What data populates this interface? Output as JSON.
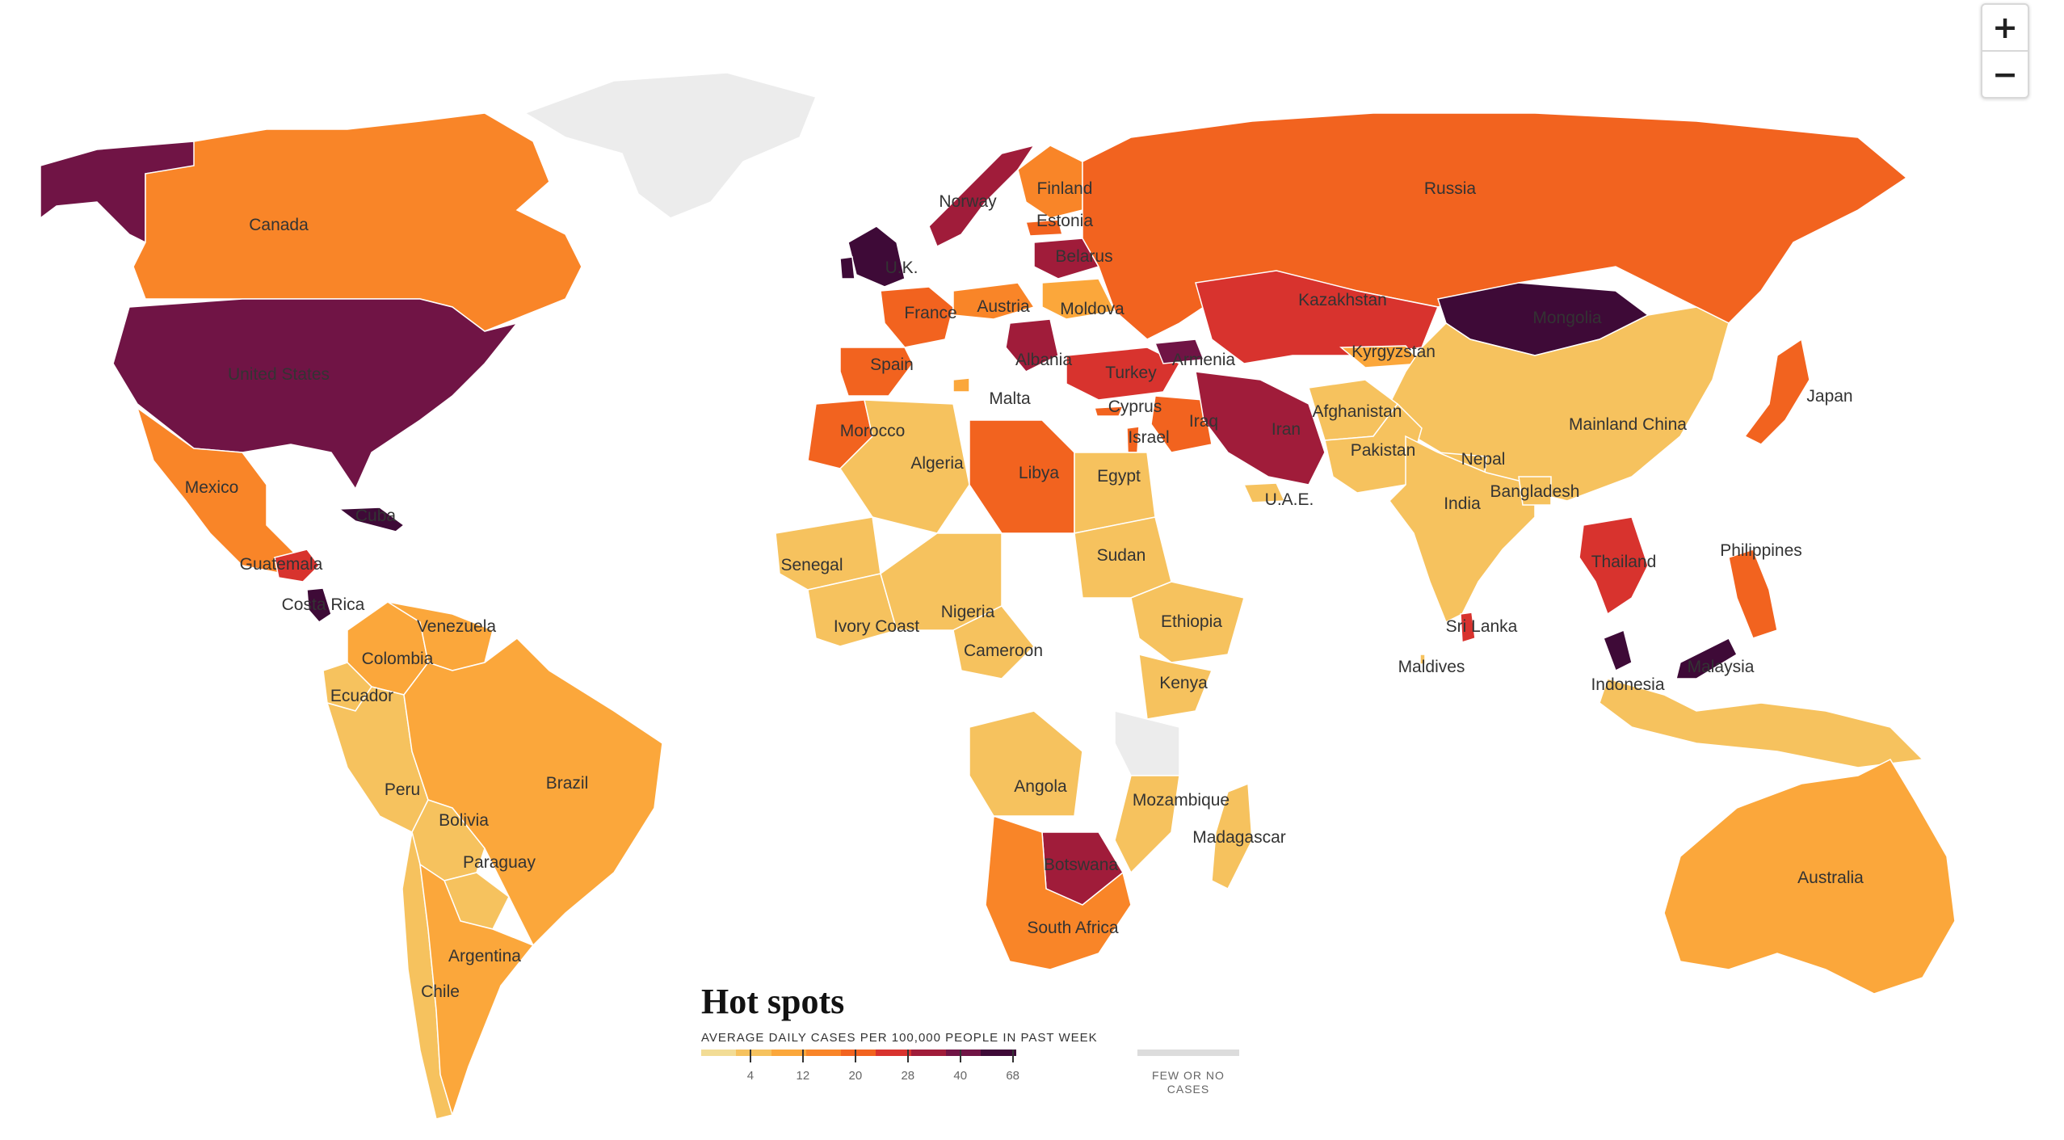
{
  "zoom": {
    "in_label": "+",
    "out_label": "−"
  },
  "legend": {
    "title": "Hot spots",
    "subtitle": "AVERAGE DAILY CASES PER 100,000 PEOPLE IN PAST WEEK",
    "ramp_colors": [
      "#f2dc95",
      "#f6c25e",
      "#fba73b",
      "#f98528",
      "#f2631f",
      "#d8332e",
      "#a01c3a",
      "#701445",
      "#3e0a37"
    ],
    "ticks": [
      "4",
      "12",
      "20",
      "28",
      "40",
      "68"
    ],
    "few_color": "#dcdcdc",
    "few_label_line1": "FEW OR NO",
    "few_label_line2": "CASES"
  },
  "map": {
    "ocean_color": "#ffffff",
    "border_color": "#ffffff",
    "no_data_color": "#ececec",
    "countries": [
      {
        "name": "Canada",
        "cases_band": 3
      },
      {
        "name": "United States",
        "cases_band": 7
      },
      {
        "name": "Mexico",
        "cases_band": 3
      },
      {
        "name": "Guatemala",
        "cases_band": 5
      },
      {
        "name": "Costa Rica",
        "cases_band": 8
      },
      {
        "name": "Cuba",
        "cases_band": 8
      },
      {
        "name": "Venezuela",
        "cases_band": 2
      },
      {
        "name": "Colombia",
        "cases_band": 2
      },
      {
        "name": "Ecuador",
        "cases_band": 1
      },
      {
        "name": "Peru",
        "cases_band": 1
      },
      {
        "name": "Bolivia",
        "cases_band": 1
      },
      {
        "name": "Brazil",
        "cases_band": 2
      },
      {
        "name": "Paraguay",
        "cases_band": 1
      },
      {
        "name": "Argentina",
        "cases_band": 2
      },
      {
        "name": "Chile",
        "cases_band": 1
      },
      {
        "name": "Norway",
        "cases_band": 6
      },
      {
        "name": "Finland",
        "cases_band": 3
      },
      {
        "name": "Estonia",
        "cases_band": 4
      },
      {
        "name": "Belarus",
        "cases_band": 6
      },
      {
        "name": "U.K.",
        "cases_band": 8
      },
      {
        "name": "France",
        "cases_band": 4
      },
      {
        "name": "Austria",
        "cases_band": 3
      },
      {
        "name": "Moldova",
        "cases_band": 2
      },
      {
        "name": "Spain",
        "cases_band": 4
      },
      {
        "name": "Albania",
        "cases_band": 6
      },
      {
        "name": "Malta",
        "cases_band": 2
      },
      {
        "name": "Armenia",
        "cases_band": 7
      },
      {
        "name": "Turkey",
        "cases_band": 5
      },
      {
        "name": "Cyprus",
        "cases_band": 4
      },
      {
        "name": "Israel",
        "cases_band": 4
      },
      {
        "name": "Iraq",
        "cases_band": 4
      },
      {
        "name": "Russia",
        "cases_band": 4
      },
      {
        "name": "Kazakhstan",
        "cases_band": 5
      },
      {
        "name": "Kyrgyzstan",
        "cases_band": 2
      },
      {
        "name": "Mongolia",
        "cases_band": 8
      },
      {
        "name": "Iran",
        "cases_band": 6
      },
      {
        "name": "Afghanistan",
        "cases_band": 1
      },
      {
        "name": "Pakistan",
        "cases_band": 1
      },
      {
        "name": "Nepal",
        "cases_band": 1
      },
      {
        "name": "India",
        "cases_band": 1
      },
      {
        "name": "Bangladesh",
        "cases_band": 1
      },
      {
        "name": "Mainland China",
        "cases_band": 1
      },
      {
        "name": "Japan",
        "cases_band": 4
      },
      {
        "name": "U.A.E.",
        "cases_band": 1
      },
      {
        "name": "Morocco",
        "cases_band": 4
      },
      {
        "name": "Algeria",
        "cases_band": 1
      },
      {
        "name": "Libya",
        "cases_band": 4
      },
      {
        "name": "Egypt",
        "cases_band": 1
      },
      {
        "name": "Sudan",
        "cases_band": 1
      },
      {
        "name": "Senegal",
        "cases_band": 1
      },
      {
        "name": "Ivory Coast",
        "cases_band": 1
      },
      {
        "name": "Nigeria",
        "cases_band": 1
      },
      {
        "name": "Cameroon",
        "cases_band": 1
      },
      {
        "name": "Ethiopia",
        "cases_band": 1
      },
      {
        "name": "Kenya",
        "cases_band": 1
      },
      {
        "name": "Angola",
        "cases_band": 1
      },
      {
        "name": "Mozambique",
        "cases_band": 1
      },
      {
        "name": "Madagascar",
        "cases_band": 1
      },
      {
        "name": "Botswana",
        "cases_band": 6
      },
      {
        "name": "South Africa",
        "cases_band": 3
      },
      {
        "name": "Sri Lanka",
        "cases_band": 5
      },
      {
        "name": "Maldives",
        "cases_band": 1
      },
      {
        "name": "Thailand",
        "cases_band": 5
      },
      {
        "name": "Philippines",
        "cases_band": 4
      },
      {
        "name": "Indonesia",
        "cases_band": 1
      },
      {
        "name": "Malaysia",
        "cases_band": 8
      },
      {
        "name": "Australia",
        "cases_band": 2
      }
    ]
  }
}
